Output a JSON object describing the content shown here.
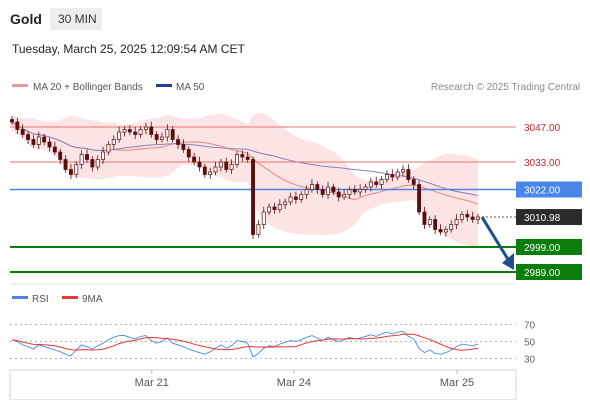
{
  "header": {
    "symbol": "Gold",
    "timeframe": "30 MIN",
    "datetime": "Tuesday, March 25, 2025 12:09:54 AM CET"
  },
  "legend": {
    "ma20_label": "MA 20 + Bollinger Bands",
    "ma50_label": "MA 50",
    "rsi_label": "RSI",
    "rsi_ma_label": "9MA"
  },
  "credit": "Research © 2025 Trading Central",
  "colors": {
    "resistance": "#e57373",
    "pivot": "#4a86e8",
    "support": "#0a7d0a",
    "price_tag": "#2b2b2b",
    "arrow": "#1f4e8c",
    "bollinger_fill": "#fde4e4",
    "ma20": "#e57b7b",
    "ma50": "#7a78b8",
    "rsi": "#4a86e8",
    "rsi_ma": "#e53935",
    "candle_up": "#ffffff",
    "candle_down": "#5a0f0f"
  },
  "levels": [
    {
      "label": "3047.00",
      "value": 3047.0,
      "kind": "resistance"
    },
    {
      "label": "3033.00",
      "value": 3033.0,
      "kind": "resistance"
    },
    {
      "label": "3022.00",
      "value": 3022.0,
      "kind": "pivot"
    },
    {
      "label": "3010.98",
      "value": 3010.98,
      "kind": "price"
    },
    {
      "label": "2999.00",
      "value": 2999.0,
      "kind": "support"
    },
    {
      "label": "2989.00",
      "value": 2989.0,
      "kind": "support"
    }
  ],
  "x_labels": [
    "Mar 21",
    "Mar 24",
    "Mar 25"
  ],
  "rsi_ticks": [
    "70",
    "50",
    "30"
  ],
  "chart_data": {
    "type": "candlestick",
    "price_range": [
      2984,
      3060
    ],
    "rsi_range": [
      20,
      80
    ],
    "close": [
      3049,
      3046,
      3044,
      3042,
      3040,
      3043,
      3041,
      3039,
      3037,
      3034,
      3030,
      3028,
      3032,
      3036,
      3034,
      3031,
      3034,
      3037,
      3040,
      3042,
      3045,
      3046,
      3045,
      3044,
      3046,
      3047,
      3044,
      3042,
      3043,
      3046,
      3042,
      3040,
      3038,
      3035,
      3033,
      3031,
      3028,
      3029,
      3031,
      3033,
      3030,
      3032,
      3036,
      3035,
      3034,
      3004,
      3008,
      3013,
      3015,
      3014,
      3016,
      3017,
      3019,
      3018,
      3020,
      3022,
      3024,
      3022,
      3020,
      3023,
      3021,
      3019,
      3020,
      3022,
      3021,
      3022,
      3023,
      3025,
      3024,
      3026,
      3028,
      3027,
      3029,
      3030,
      3026,
      3024,
      3013,
      3008,
      3010,
      3006,
      3005,
      3006,
      3008,
      3010,
      3012,
      3011,
      3010,
      3011
    ],
    "rsi": [
      52,
      50,
      46,
      44,
      41,
      46,
      44,
      42,
      40,
      38,
      35,
      33,
      40,
      46,
      44,
      41,
      45,
      48,
      52,
      55,
      57,
      57,
      55,
      53,
      56,
      57,
      51,
      48,
      50,
      54,
      48,
      46,
      44,
      41,
      39,
      37,
      35,
      38,
      42,
      46,
      42,
      45,
      51,
      50,
      48,
      32,
      36,
      42,
      45,
      44,
      47,
      49,
      51,
      50,
      52,
      55,
      57,
      54,
      51,
      55,
      52,
      50,
      52,
      55,
      53,
      54,
      56,
      58,
      56,
      59,
      61,
      59,
      61,
      62,
      56,
      53,
      42,
      37,
      40,
      36,
      35,
      37,
      40,
      44,
      47,
      46,
      45,
      47
    ],
    "rsi_ma_range": [
      38,
      55
    ],
    "annotations": [
      "projected move down from 3010.98 toward 2989.00"
    ]
  }
}
